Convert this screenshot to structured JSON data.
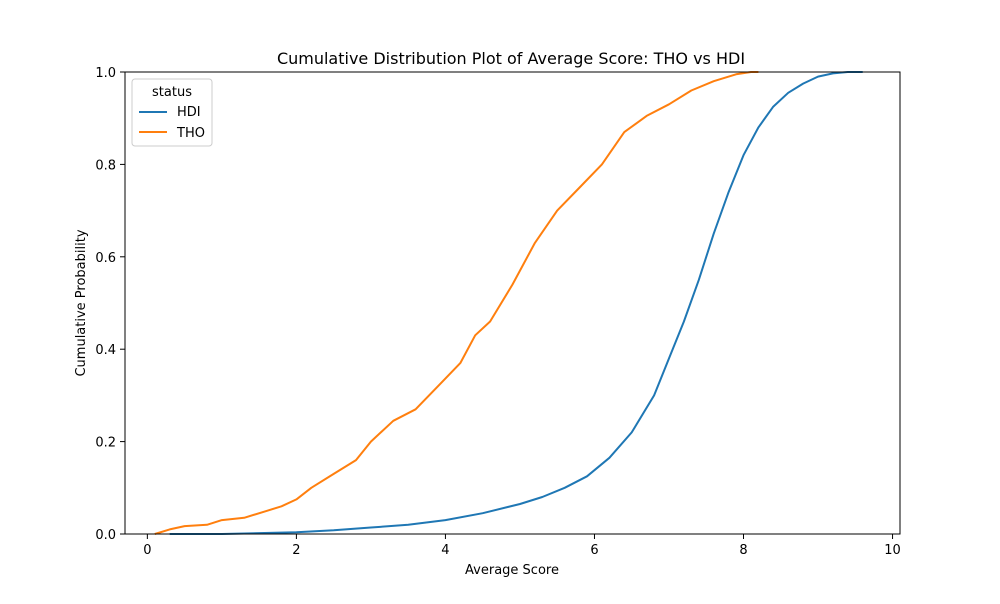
{
  "chart_data": {
    "type": "line",
    "title": "Cumulative Distribution Plot of Average Score: THO vs HDI",
    "xlabel": "Average Score",
    "ylabel": "Cumulative Probability",
    "xlim": [
      -0.3,
      10.1
    ],
    "ylim": [
      0,
      1.0
    ],
    "xticks": [
      0,
      2,
      4,
      6,
      8,
      10
    ],
    "yticks": [
      0.0,
      0.2,
      0.4,
      0.6,
      0.8,
      1.0
    ],
    "xtick_labels": [
      "0",
      "2",
      "4",
      "6",
      "8",
      "10"
    ],
    "ytick_labels": [
      "0.0",
      "0.2",
      "0.4",
      "0.6",
      "0.8",
      "1.0"
    ],
    "grid": false,
    "legend": {
      "title": "status",
      "placement": "top-left"
    },
    "series": [
      {
        "name": "HDI",
        "color": "#1f77b4",
        "x": [
          0.3,
          1.0,
          1.5,
          2.0,
          2.5,
          3.0,
          3.5,
          4.0,
          4.5,
          5.0,
          5.3,
          5.6,
          5.9,
          6.2,
          6.5,
          6.8,
          7.0,
          7.2,
          7.4,
          7.6,
          7.8,
          8.0,
          8.2,
          8.4,
          8.6,
          8.8,
          9.0,
          9.2,
          9.4,
          9.6
        ],
        "y": [
          0.0,
          0.0,
          0.002,
          0.004,
          0.008,
          0.014,
          0.02,
          0.03,
          0.045,
          0.065,
          0.08,
          0.1,
          0.125,
          0.165,
          0.22,
          0.3,
          0.38,
          0.46,
          0.55,
          0.65,
          0.74,
          0.82,
          0.88,
          0.925,
          0.955,
          0.975,
          0.99,
          0.997,
          1.0,
          1.0
        ]
      },
      {
        "name": "THO",
        "color": "#ff7f0e",
        "x": [
          0.1,
          0.3,
          0.5,
          0.8,
          1.0,
          1.3,
          1.6,
          1.8,
          2.0,
          2.2,
          2.5,
          2.8,
          3.0,
          3.3,
          3.6,
          3.9,
          4.2,
          4.4,
          4.6,
          4.9,
          5.2,
          5.5,
          5.8,
          6.1,
          6.4,
          6.7,
          7.0,
          7.3,
          7.6,
          7.9,
          8.1,
          8.2
        ],
        "y": [
          0.0,
          0.01,
          0.017,
          0.02,
          0.03,
          0.035,
          0.05,
          0.06,
          0.075,
          0.1,
          0.13,
          0.16,
          0.2,
          0.245,
          0.27,
          0.32,
          0.37,
          0.43,
          0.46,
          0.54,
          0.63,
          0.7,
          0.75,
          0.8,
          0.87,
          0.905,
          0.93,
          0.96,
          0.98,
          0.995,
          1.0,
          1.0
        ]
      }
    ]
  }
}
